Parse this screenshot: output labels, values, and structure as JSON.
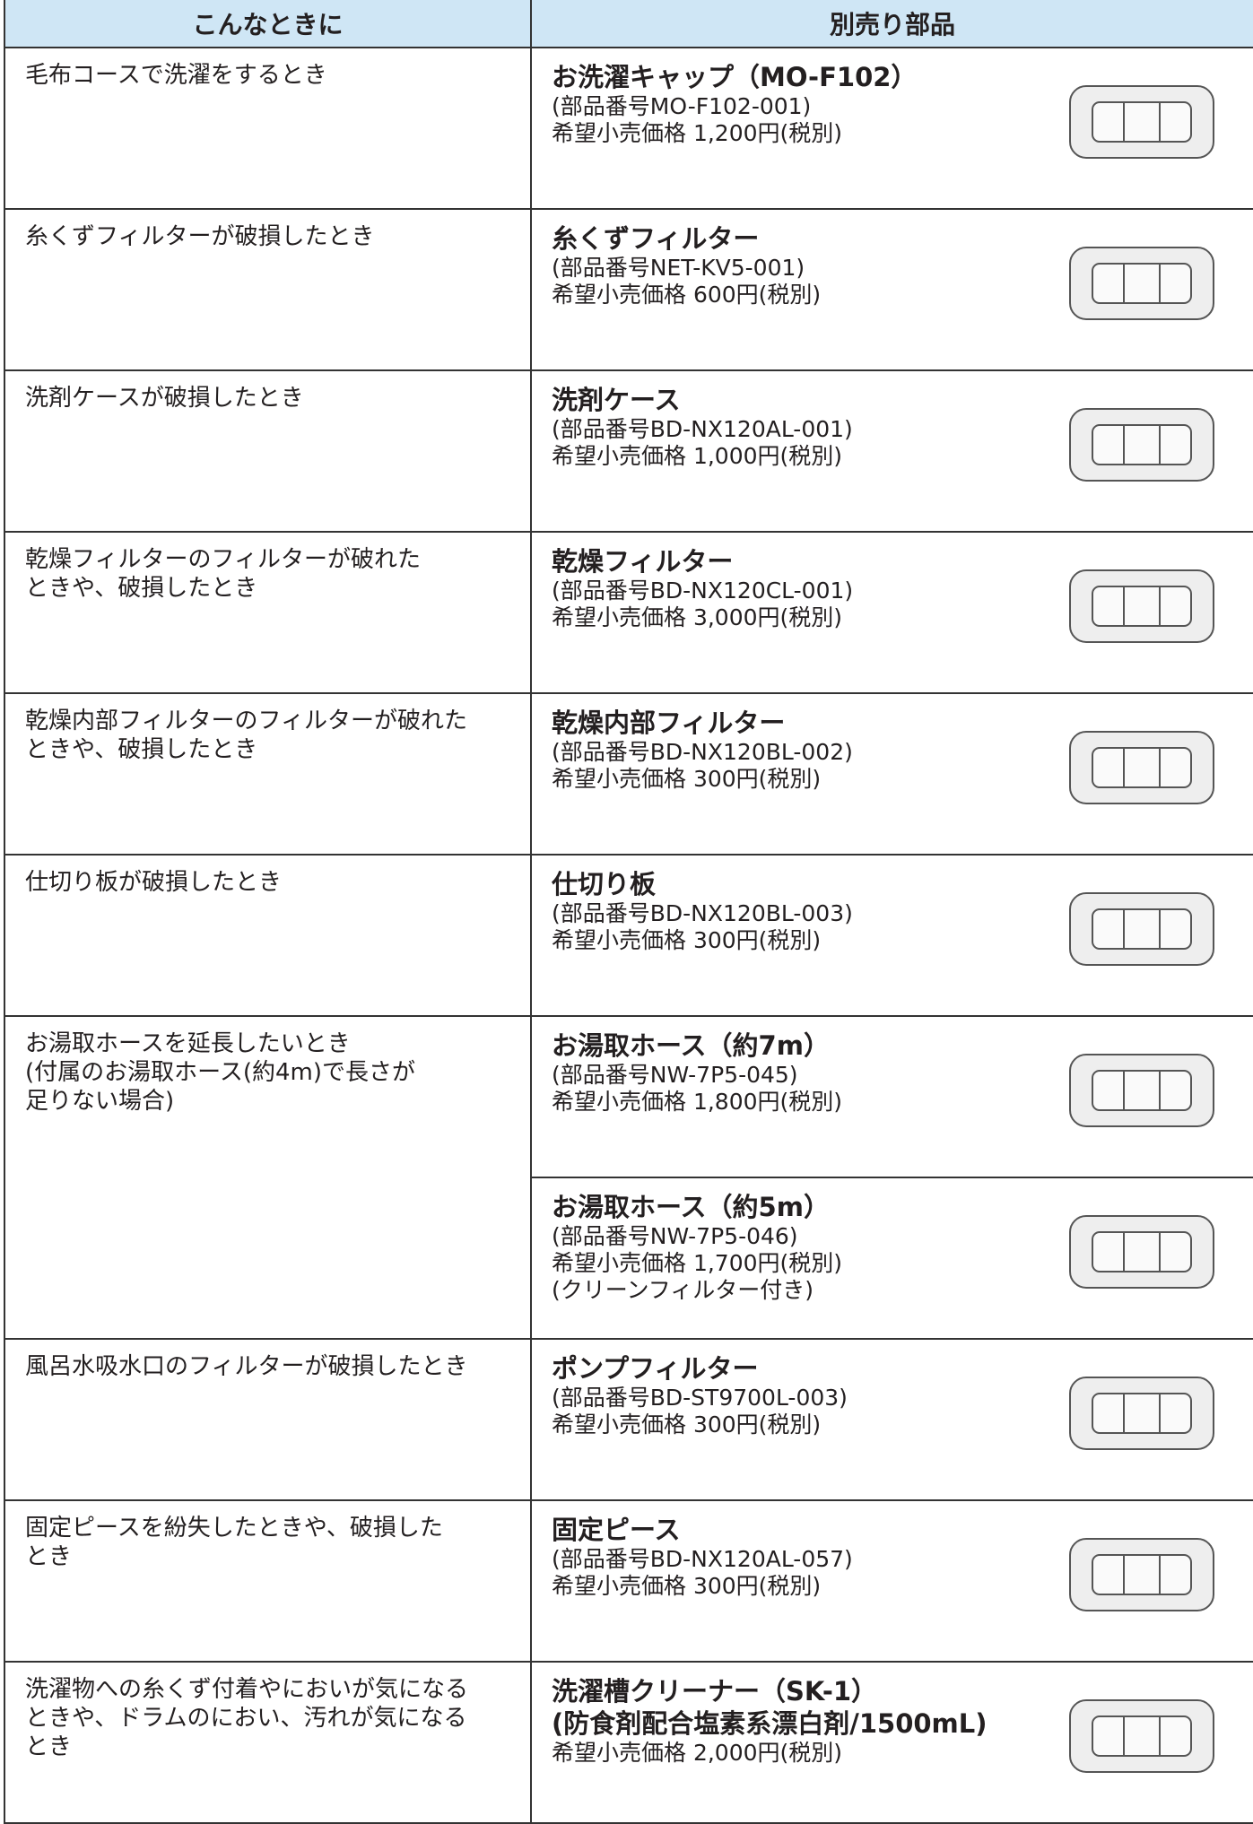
{
  "header": {
    "left": "こんなときに",
    "right": "別売り部品"
  },
  "rows": [
    {
      "situation": [
        "毛布コースで洗濯をするとき"
      ],
      "parts": [
        {
          "name": [
            "お洗濯キャップ（MO-F102）"
          ],
          "lines": [
            "(部品番号MO-F102-001)",
            "希望小売価格 1,200円(税別)"
          ]
        }
      ]
    },
    {
      "situation": [
        "糸くずフィルターが破損したとき"
      ],
      "parts": [
        {
          "name": [
            "糸くずフィルター"
          ],
          "lines": [
            "(部品番号NET-KV5-001)",
            "希望小売価格 600円(税別)"
          ]
        }
      ]
    },
    {
      "situation": [
        "洗剤ケースが破損したとき"
      ],
      "parts": [
        {
          "name": [
            "洗剤ケース"
          ],
          "lines": [
            "(部品番号BD-NX120AL-001)",
            "希望小売価格 1,000円(税別)"
          ]
        }
      ]
    },
    {
      "situation": [
        "乾燥フィルターのフィルターが破れた",
        "ときや、破損したとき"
      ],
      "parts": [
        {
          "name": [
            "乾燥フィルター"
          ],
          "lines": [
            "(部品番号BD-NX120CL-001)",
            "希望小売価格 3,000円(税別)"
          ]
        }
      ]
    },
    {
      "situation": [
        "乾燥内部フィルターのフィルターが破れた",
        "ときや、破損したとき"
      ],
      "parts": [
        {
          "name": [
            "乾燥内部フィルター"
          ],
          "lines": [
            "(部品番号BD-NX120BL-002)",
            "希望小売価格 300円(税別)"
          ]
        }
      ]
    },
    {
      "situation": [
        "仕切り板が破損したとき"
      ],
      "parts": [
        {
          "name": [
            "仕切り板"
          ],
          "lines": [
            "(部品番号BD-NX120BL-003)",
            "希望小売価格 300円(税別)"
          ]
        }
      ]
    },
    {
      "situation": [
        "お湯取ホースを延長したいとき",
        "(付属のお湯取ホース(約4m)で長さが",
        "足りない場合)"
      ],
      "parts": [
        {
          "name": [
            "お湯取ホース（約7m）"
          ],
          "lines": [
            "(部品番号NW-7P5-045)",
            "希望小売価格 1,800円(税別)"
          ]
        },
        {
          "name": [
            "お湯取ホース（約5m）"
          ],
          "lines": [
            "(部品番号NW-7P5-046)",
            "希望小売価格 1,700円(税別)",
            "(クリーンフィルター付き)"
          ]
        }
      ]
    },
    {
      "situation": [
        "風呂水吸水口のフィルターが破損したとき"
      ],
      "parts": [
        {
          "name": [
            "ポンプフィルター"
          ],
          "lines": [
            "(部品番号BD-ST9700L-003)",
            "希望小売価格 300円(税別)"
          ]
        }
      ]
    },
    {
      "situation": [
        "固定ピースを紛失したときや、破損した",
        "とき"
      ],
      "parts": [
        {
          "name": [
            "固定ピース"
          ],
          "lines": [
            "(部品番号BD-NX120AL-057)",
            "希望小売価格 300円(税別)"
          ]
        }
      ]
    },
    {
      "situation": [
        "洗濯物への糸くず付着やにおいが気になる",
        "ときや、ドラムのにおい、汚れが気になる",
        "とき"
      ],
      "parts": [
        {
          "name": [
            "洗濯槽クリーナー（SK-1）",
            "(防食剤配合塩素系漂白剤/1500mL)"
          ],
          "lines": [
            "希望小売価格 2,000円(税別)"
          ]
        }
      ]
    }
  ]
}
